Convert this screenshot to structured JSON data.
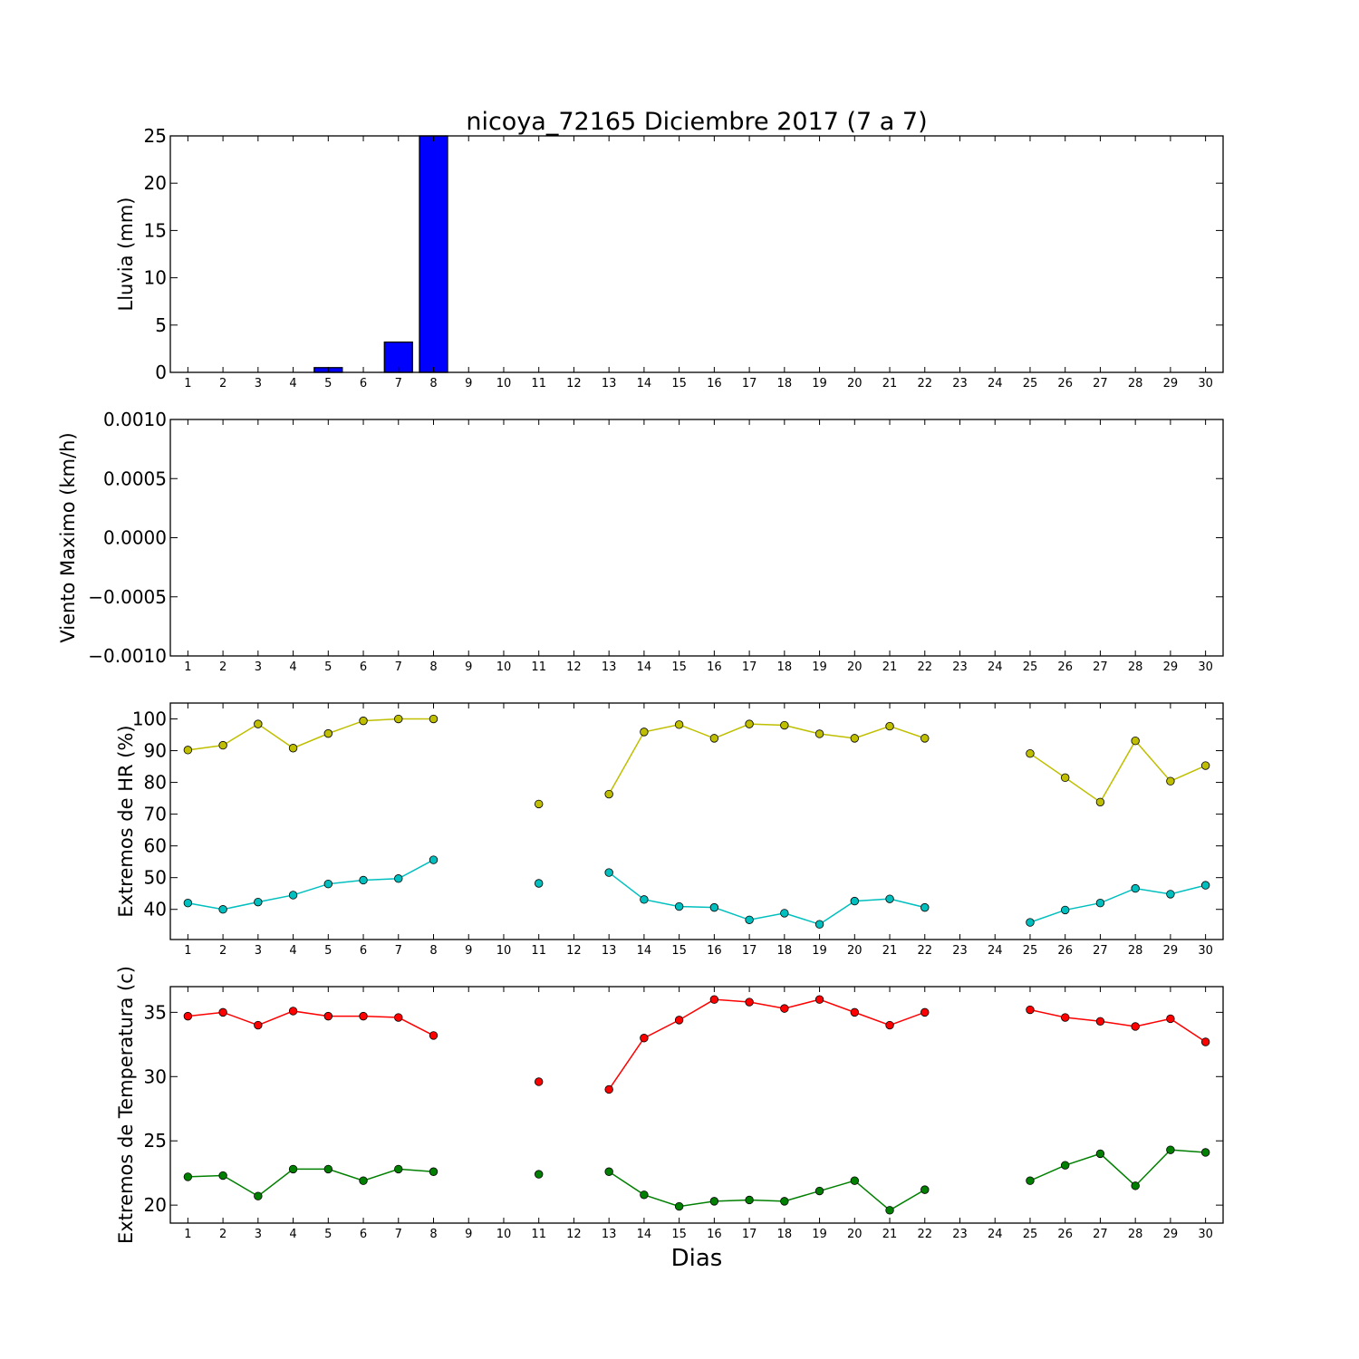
{
  "title": "nicoya_72165 Diciembre 2017  (7 a 7)",
  "xlabel": "Dias",
  "chart_data": [
    {
      "type": "bar",
      "ylabel": "Lluvia (mm)",
      "x": [
        1,
        2,
        3,
        4,
        5,
        6,
        7,
        8,
        9,
        10,
        11,
        12,
        13,
        14,
        15,
        16,
        17,
        18,
        19,
        20,
        21,
        22,
        23,
        24,
        25,
        26,
        27,
        28,
        29,
        30
      ],
      "xlim": [
        0.5,
        30.5
      ],
      "ylim": [
        0,
        25
      ],
      "yticks": [
        0,
        5,
        10,
        15,
        20,
        25
      ],
      "ytick_labels": [
        "0",
        "5",
        "10",
        "15",
        "20",
        "25"
      ],
      "grid": false,
      "series": [
        {
          "color": "#0000ff",
          "values": [
            0,
            0,
            0,
            0,
            0.5,
            0,
            3.2,
            25,
            0,
            0,
            0,
            0,
            0,
            0,
            0,
            0,
            0,
            0,
            0,
            0,
            0,
            0,
            0,
            0,
            0,
            0,
            0,
            0,
            0,
            0
          ]
        }
      ]
    },
    {
      "type": "line",
      "ylabel": "Viento Maximo (km/h)",
      "x": [
        1,
        2,
        3,
        4,
        5,
        6,
        7,
        8,
        9,
        10,
        11,
        12,
        13,
        14,
        15,
        16,
        17,
        18,
        19,
        20,
        21,
        22,
        23,
        24,
        25,
        26,
        27,
        28,
        29,
        30
      ],
      "xlim": [
        0.5,
        30.5
      ],
      "ylim": [
        -0.001,
        0.001
      ],
      "yticks": [
        -0.001,
        -0.0005,
        0,
        0.0005,
        0.001
      ],
      "ytick_labels": [
        "−0.0010",
        "−0.0005",
        "0.0000",
        "0.0005",
        "0.0010"
      ],
      "grid": false,
      "series": []
    },
    {
      "type": "line",
      "ylabel": "Extremos de HR (%)",
      "x": [
        1,
        2,
        3,
        4,
        5,
        6,
        7,
        8,
        9,
        10,
        11,
        12,
        13,
        14,
        15,
        16,
        17,
        18,
        19,
        20,
        21,
        22,
        23,
        24,
        25,
        26,
        27,
        28,
        29,
        30
      ],
      "xlim": [
        0.5,
        30.5
      ],
      "ylim": [
        30.5,
        105
      ],
      "yticks": [
        40,
        50,
        60,
        70,
        80,
        90,
        100
      ],
      "ytick_labels": [
        "40",
        "50",
        "60",
        "70",
        "80",
        "90",
        "100"
      ],
      "grid": false,
      "series": [
        {
          "color": "#bfbf00",
          "values": [
            90.2,
            91.7,
            98.4,
            90.8,
            95.4,
            99.4,
            100,
            100,
            null,
            null,
            73.2,
            null,
            76.3,
            95.9,
            98.2,
            93.9,
            98.4,
            98,
            95.3,
            93.9,
            97.7,
            93.9,
            null,
            null,
            89.1,
            81.5,
            73.8,
            93.1,
            80.4,
            85.3
          ]
        },
        {
          "color": "#00bfbf",
          "values": [
            42,
            40,
            42.3,
            44.5,
            48,
            49.2,
            49.7,
            55.6,
            null,
            null,
            48.2,
            null,
            51.6,
            43.1,
            40.9,
            40.6,
            36.7,
            38.8,
            35.3,
            42.6,
            43.3,
            40.6,
            null,
            null,
            35.9,
            39.8,
            42,
            46.6,
            44.8,
            47.6
          ]
        }
      ]
    },
    {
      "type": "line",
      "ylabel": "Extremos de Temperatura (c)",
      "x": [
        1,
        2,
        3,
        4,
        5,
        6,
        7,
        8,
        9,
        10,
        11,
        12,
        13,
        14,
        15,
        16,
        17,
        18,
        19,
        20,
        21,
        22,
        23,
        24,
        25,
        26,
        27,
        28,
        29,
        30
      ],
      "xlim": [
        0.5,
        30.5
      ],
      "ylim": [
        18.6,
        37
      ],
      "yticks": [
        20,
        25,
        30,
        35
      ],
      "ytick_labels": [
        "20",
        "25",
        "30",
        "35"
      ],
      "grid": false,
      "series": [
        {
          "color": "#ff0000",
          "values": [
            34.7,
            35,
            34,
            35.1,
            34.7,
            34.7,
            34.6,
            33.2,
            null,
            null,
            29.6,
            null,
            29,
            33,
            34.4,
            36,
            35.8,
            35.3,
            36,
            35,
            34,
            35,
            null,
            null,
            35.2,
            34.6,
            34.3,
            33.9,
            34.5,
            32.7
          ]
        },
        {
          "color": "#008000",
          "values": [
            22.2,
            22.3,
            20.7,
            22.8,
            22.8,
            21.9,
            22.8,
            22.6,
            null,
            null,
            22.4,
            null,
            22.6,
            20.8,
            19.9,
            20.3,
            20.4,
            20.3,
            21.1,
            21.9,
            19.6,
            21.2,
            null,
            null,
            21.9,
            23.1,
            24,
            21.5,
            24.3,
            24.1
          ]
        }
      ]
    }
  ]
}
